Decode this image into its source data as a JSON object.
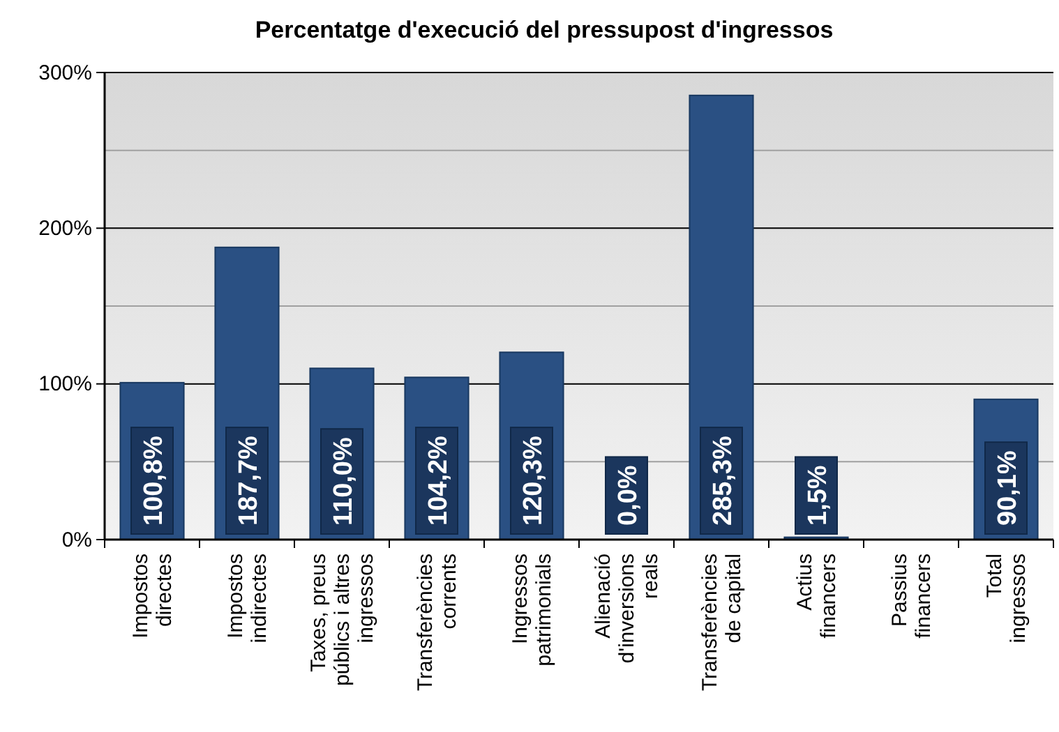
{
  "chart_data": {
    "type": "bar",
    "title": "Percentatge d'execució del pressupost d'ingressos",
    "categories": [
      "Impostos\ndirectes",
      "Impostos\nindirectes",
      "Taxes, preus\npúblics i altres\ningressos",
      "Transferències\ncorrents",
      "Ingressos\npatrimonials",
      "Alienació\nd'inversions\nreals",
      "Transferències\nde capital",
      "Actius\nfinancers",
      "Passius\nfinancers",
      "Total\ningressos"
    ],
    "values": [
      100.8,
      187.7,
      110.0,
      104.2,
      120.3,
      0,
      285.3,
      1.5,
      null,
      90.1
    ],
    "value_labels": [
      "100,8%",
      "187,7%",
      "110,0%",
      "104,2%",
      "120,3%",
      "0,0%",
      "285,3%",
      "1,5%",
      null,
      "90,1%"
    ],
    "color": "#2a5083",
    "ylim": [
      0,
      300
    ],
    "yticks": [
      {
        "value": 0,
        "label": "0%"
      },
      {
        "value": 50,
        "label": null
      },
      {
        "value": 100,
        "label": "100%"
      },
      {
        "value": 150,
        "label": null
      },
      {
        "value": 200,
        "label": "200%"
      },
      {
        "value": 250,
        "label": null
      },
      {
        "value": 300,
        "label": "300%"
      }
    ],
    "grid": true
  }
}
